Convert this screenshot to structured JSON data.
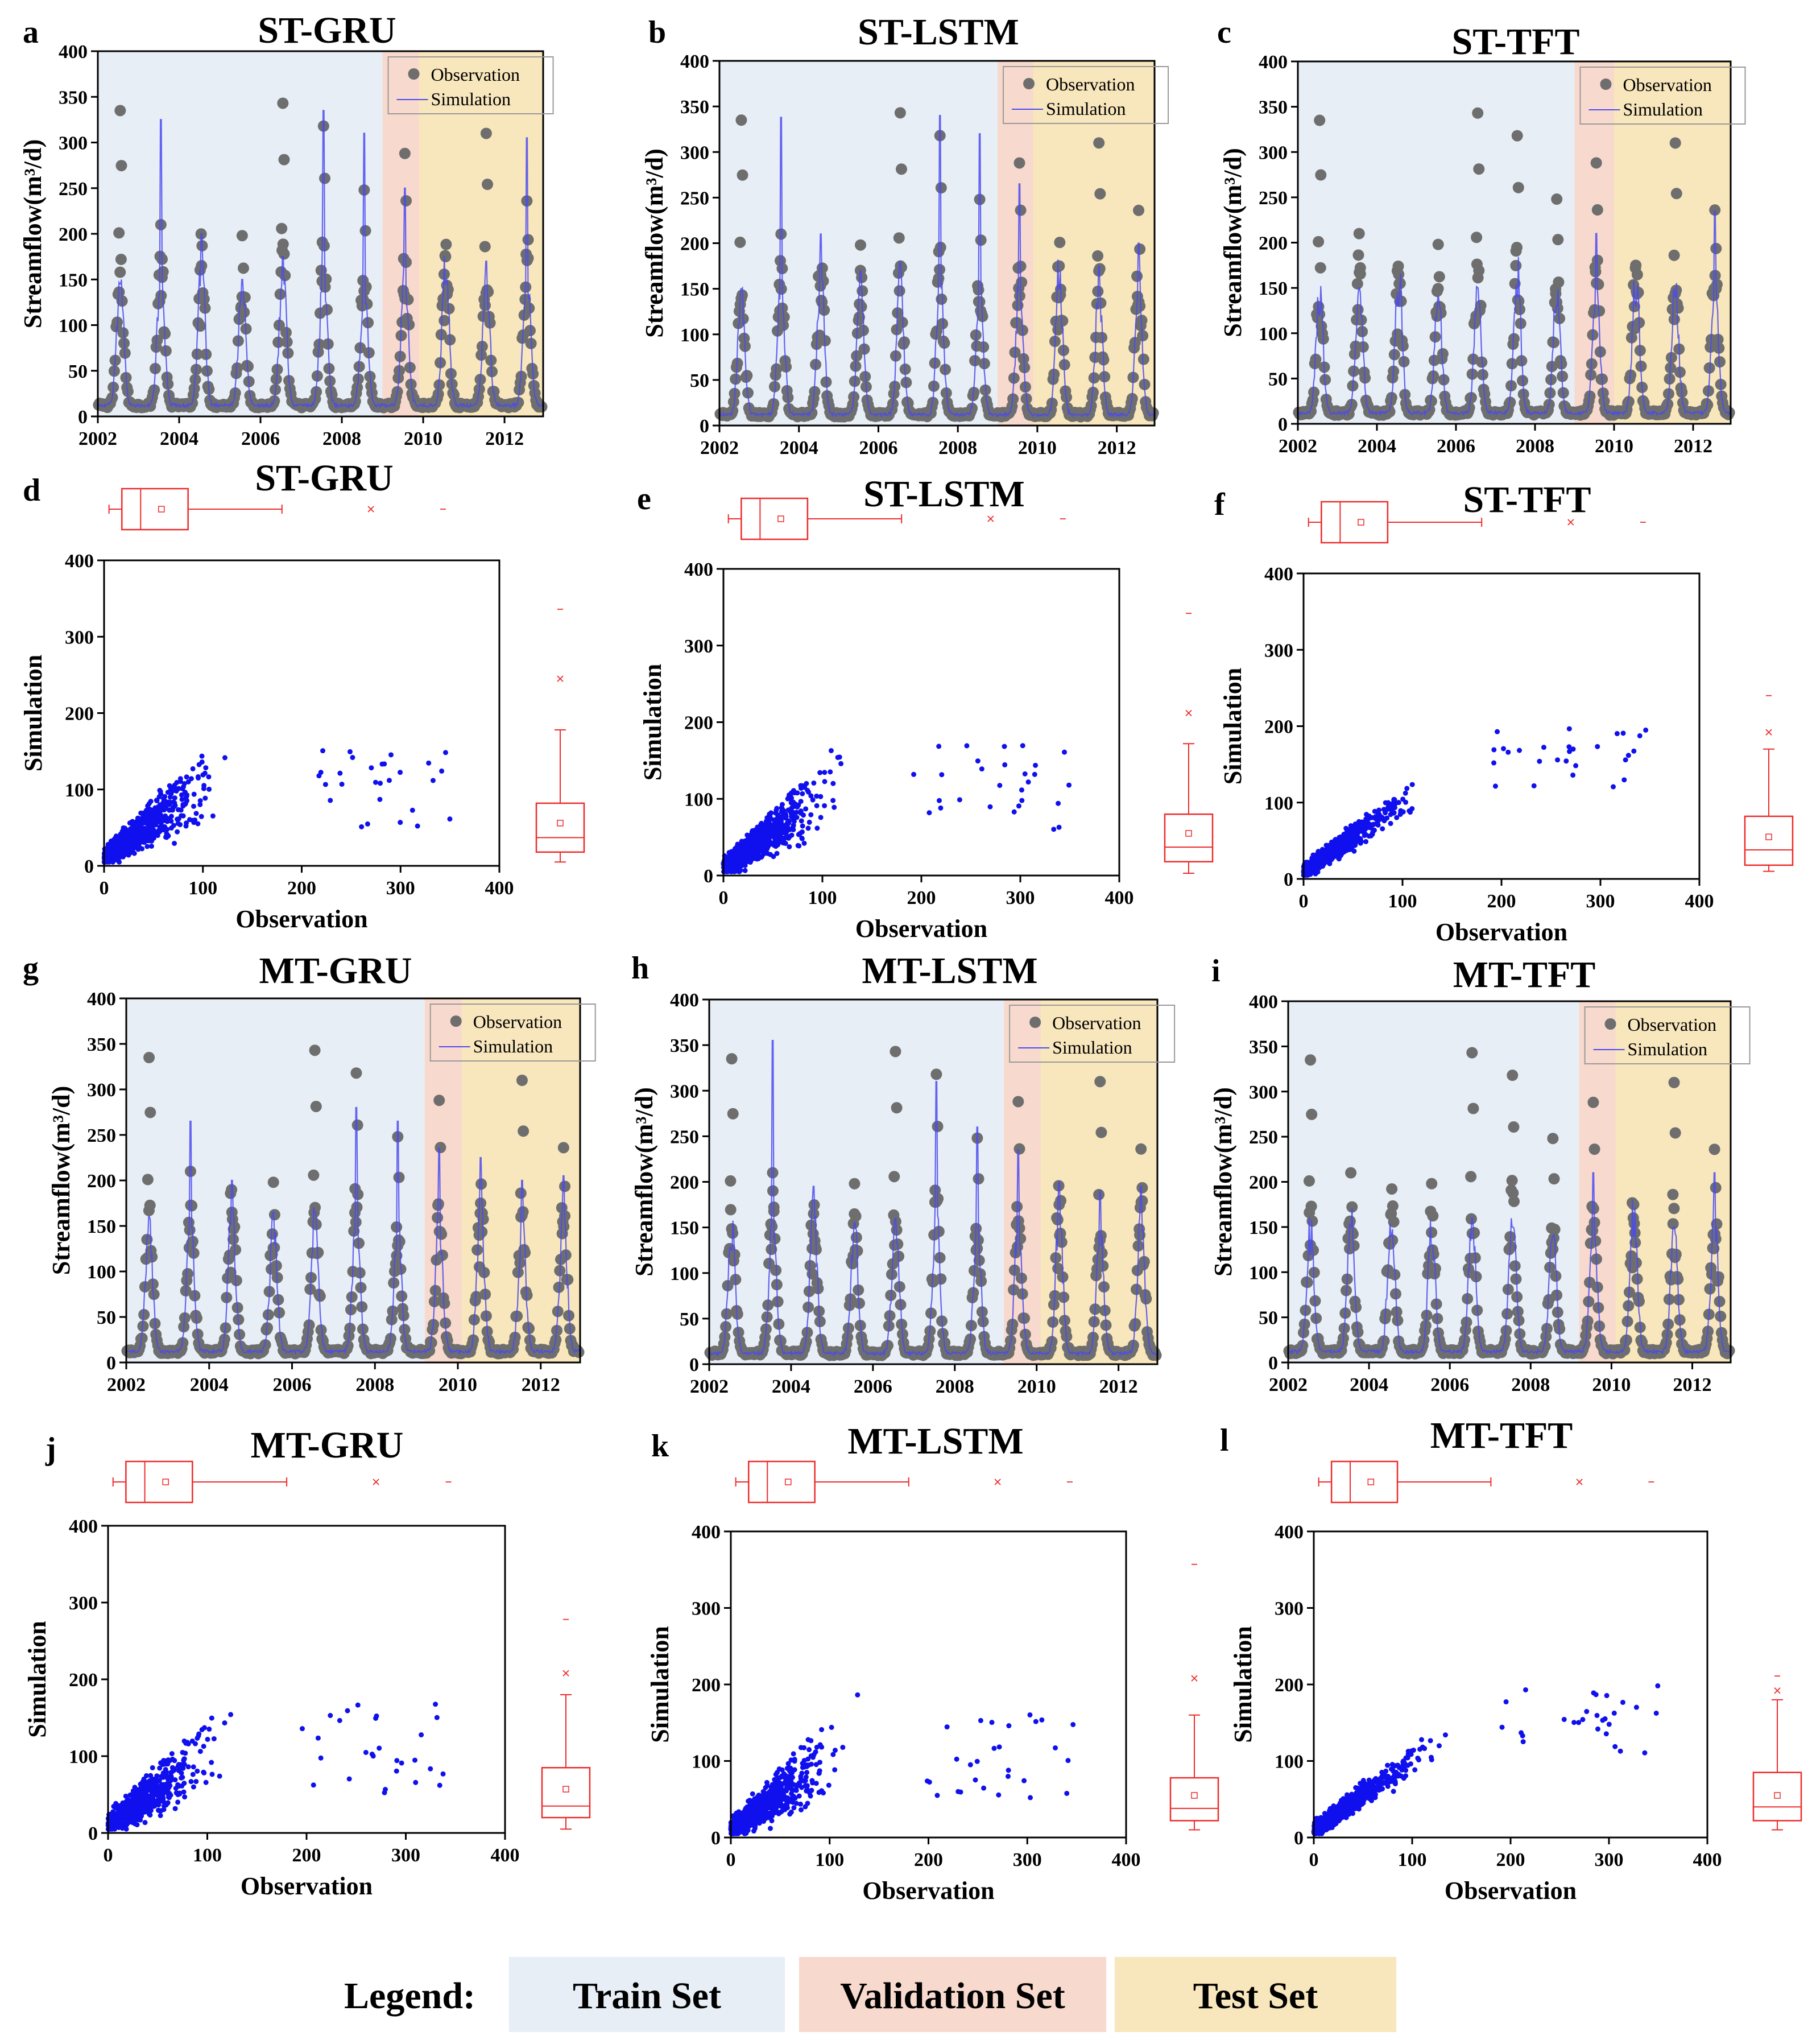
{
  "colors": {
    "train": "#e7eef6",
    "validation": "#f8d9cd",
    "test": "#f8e6bc",
    "observation": "#6e6e6e",
    "simulation": "#4a4af0",
    "scatter": "#1010ee",
    "boxplot": "#ee2b2b"
  },
  "bottom_legend": {
    "title": "Legend:",
    "items": [
      {
        "label": "Train Set",
        "color": "#e7eef6"
      },
      {
        "label": "Validation Set",
        "color": "#f8d9cd"
      },
      {
        "label": "Test Set",
        "color": "#f8e6bc"
      }
    ]
  },
  "chart_data": [
    {
      "id": "a",
      "type": "line",
      "title": "ST-GRU",
      "ylabel": "Streamflow(m³/d)",
      "xlabel": "",
      "legend": [
        "Observation",
        "Simulation"
      ],
      "x_ticks": [
        "2002",
        "2004",
        "2006",
        "2008",
        "2010",
        "2012"
      ],
      "y_ticks": [
        "0",
        "50",
        "100",
        "150",
        "200",
        "250",
        "300",
        "350",
        "400"
      ],
      "xlim": [
        2002,
        2012.95
      ],
      "ylim": [
        0,
        400
      ],
      "periods": {
        "train": [
          2002,
          2009.0
        ],
        "validation": [
          2009.0,
          2009.9
        ],
        "test": [
          2009.9,
          2012.95
        ]
      },
      "obs_peaks": [
        335,
        210,
        165,
        198,
        343,
        318,
        248,
        288,
        175,
        310,
        236
      ],
      "sim_peaks": [
        145,
        325,
        200,
        150,
        175,
        335,
        310,
        250,
        145,
        170,
        305
      ]
    },
    {
      "id": "b",
      "type": "line",
      "title": "ST-LSTM",
      "ylabel": "Streamflow(m³/d)",
      "xlabel": "",
      "legend": [
        "Observation",
        "Simulation"
      ],
      "x_ticks": [
        "2002",
        "2004",
        "2006",
        "2008",
        "2010",
        "2012"
      ],
      "y_ticks": [
        "0",
        "50",
        "100",
        "150",
        "200",
        "250",
        "300",
        "350",
        "400"
      ],
      "xlim": [
        2002,
        2012.95
      ],
      "ylim": [
        0,
        400
      ],
      "periods": {
        "train": [
          2002,
          2009.0
        ],
        "validation": [
          2009.0,
          2009.9
        ],
        "test": [
          2009.9,
          2012.95
        ]
      },
      "obs_peaks": [
        335,
        210,
        165,
        198,
        343,
        318,
        248,
        288,
        175,
        310,
        236
      ],
      "sim_peaks": [
        150,
        338,
        210,
        170,
        180,
        340,
        320,
        265,
        150,
        175,
        200
      ]
    },
    {
      "id": "c",
      "type": "line",
      "title": "ST-TFT",
      "ylabel": "Streamflow(m³/d)",
      "xlabel": "",
      "legend": [
        "Observation",
        "Simulation"
      ],
      "x_ticks": [
        "2002",
        "2004",
        "2006",
        "2008",
        "2010",
        "2012"
      ],
      "y_ticks": [
        "0",
        "50",
        "100",
        "150",
        "200",
        "250",
        "300",
        "350",
        "400"
      ],
      "xlim": [
        2002,
        2012.95
      ],
      "ylim": [
        0,
        400
      ],
      "periods": {
        "train": [
          2002,
          2009.0
        ],
        "validation": [
          2009.0,
          2010.0
        ],
        "test": [
          2010.0,
          2012.95
        ]
      },
      "obs_peaks": [
        335,
        210,
        165,
        198,
        343,
        318,
        248,
        288,
        175,
        310,
        236
      ],
      "sim_peaks": [
        120,
        150,
        130,
        140,
        150,
        140,
        130,
        210,
        130,
        140,
        235
      ]
    },
    {
      "id": "d",
      "type": "scatter",
      "title": "ST-GRU",
      "xlabel": "Observation",
      "ylabel": "Simulation",
      "x_ticks": [
        "0",
        "100",
        "200",
        "300",
        "400"
      ],
      "y_ticks": [
        "0",
        "100",
        "200",
        "300",
        "400"
      ],
      "xlim": [
        0,
        400
      ],
      "ylim": [
        0,
        400
      ],
      "boxplot_observation": {
        "whisker_low": 5,
        "q1": 18,
        "median": 37,
        "mean": 58,
        "q3": 85,
        "whisker_high": 180,
        "outliers": [
          270,
          343
        ]
      },
      "boxplot_simulation": {
        "whisker_low": 5,
        "q1": 18,
        "median": 37,
        "mean": 56,
        "q3": 82,
        "whisker_high": 178,
        "outliers": [
          245,
          336
        ]
      }
    },
    {
      "id": "e",
      "type": "scatter",
      "title": "ST-LSTM",
      "xlabel": "Observation",
      "ylabel": "Simulation",
      "x_ticks": [
        "0",
        "100",
        "200",
        "300",
        "400"
      ],
      "y_ticks": [
        "0",
        "100",
        "200",
        "300",
        "400"
      ],
      "xlim": [
        0,
        400
      ],
      "ylim": [
        0,
        400
      ],
      "boxplot_observation": {
        "whisker_low": 5,
        "q1": 18,
        "median": 37,
        "mean": 58,
        "q3": 85,
        "whisker_high": 180,
        "outliers": [
          270,
          343
        ]
      },
      "boxplot_simulation": {
        "whisker_low": 3,
        "q1": 18,
        "median": 37,
        "mean": 55,
        "q3": 80,
        "whisker_high": 172,
        "outliers": [
          212,
          342
        ]
      }
    },
    {
      "id": "f",
      "type": "scatter",
      "title": "ST-TFT",
      "xlabel": "Observation",
      "ylabel": "Simulation",
      "x_ticks": [
        "0",
        "100",
        "200",
        "300",
        "400"
      ],
      "y_ticks": [
        "0",
        "100",
        "200",
        "300",
        "400"
      ],
      "xlim": [
        0,
        400
      ],
      "ylim": [
        0,
        400
      ],
      "boxplot_observation": {
        "whisker_low": 5,
        "q1": 18,
        "median": 37,
        "mean": 58,
        "q3": 85,
        "whisker_high": 180,
        "outliers": [
          270,
          343
        ]
      },
      "boxplot_simulation": {
        "whisker_low": 10,
        "q1": 18,
        "median": 38,
        "mean": 55,
        "q3": 82,
        "whisker_high": 170,
        "outliers": [
          192,
          240
        ]
      }
    },
    {
      "id": "g",
      "type": "line",
      "title": "MT-GRU",
      "ylabel": "Streamflow(m³/d)",
      "xlabel": "",
      "legend": [
        "Observation",
        "Simulation"
      ],
      "x_ticks": [
        "2002",
        "2004",
        "2006",
        "2008",
        "2010",
        "2012"
      ],
      "y_ticks": [
        "0",
        "50",
        "100",
        "150",
        "200",
        "250",
        "300",
        "350",
        "400"
      ],
      "xlim": [
        2002,
        2012.95
      ],
      "ylim": [
        0,
        400
      ],
      "periods": {
        "train": [
          2002,
          2009.2
        ],
        "validation": [
          2009.2,
          2010.1
        ],
        "test": [
          2010.1,
          2012.95
        ]
      },
      "obs_peaks": [
        335,
        210,
        165,
        198,
        343,
        318,
        248,
        288,
        175,
        310,
        236
      ],
      "sim_peaks": [
        160,
        265,
        200,
        165,
        165,
        280,
        265,
        235,
        225,
        200,
        205
      ]
    },
    {
      "id": "h",
      "type": "line",
      "title": "MT-LSTM",
      "ylabel": "Streamflow(m³/d)",
      "xlabel": "",
      "legend": [
        "Observation",
        "Simulation"
      ],
      "x_ticks": [
        "2002",
        "2004",
        "2006",
        "2008",
        "2010",
        "2012"
      ],
      "y_ticks": [
        "0",
        "50",
        "100",
        "150",
        "200",
        "250",
        "300",
        "350",
        "400"
      ],
      "xlim": [
        2002,
        2012.95
      ],
      "ylim": [
        0,
        400
      ],
      "periods": {
        "train": [
          2002,
          2009.2
        ],
        "validation": [
          2009.2,
          2010.1
        ],
        "test": [
          2010.1,
          2012.95
        ]
      },
      "obs_peaks": [
        335,
        210,
        165,
        198,
        343,
        318,
        248,
        288,
        175,
        310,
        236
      ],
      "sim_peaks": [
        125,
        355,
        195,
        155,
        160,
        310,
        260,
        235,
        200,
        190,
        195
      ]
    },
    {
      "id": "i",
      "type": "line",
      "title": "MT-TFT",
      "ylabel": "Streamflow(m³/d)",
      "xlabel": "",
      "legend": [
        "Observation",
        "Simulation"
      ],
      "x_ticks": [
        "2002",
        "2004",
        "2006",
        "2008",
        "2010",
        "2012"
      ],
      "y_ticks": [
        "0",
        "50",
        "100",
        "150",
        "200",
        "250",
        "300",
        "350",
        "400"
      ],
      "xlim": [
        2002,
        2012.95
      ],
      "ylim": [
        0,
        400
      ],
      "periods": {
        "train": [
          2002,
          2009.2
        ],
        "validation": [
          2009.2,
          2010.1
        ],
        "test": [
          2010.1,
          2012.95
        ]
      },
      "obs_peaks": [
        335,
        210,
        165,
        198,
        343,
        318,
        248,
        288,
        175,
        310,
        236
      ],
      "sim_peaks": [
        120,
        150,
        140,
        130,
        160,
        150,
        140,
        210,
        140,
        150,
        210
      ]
    },
    {
      "id": "j",
      "type": "scatter",
      "title": "MT-GRU",
      "xlabel": "Observation",
      "ylabel": "Simulation",
      "x_ticks": [
        "0",
        "100",
        "200",
        "300",
        "400"
      ],
      "y_ticks": [
        "0",
        "100",
        "200",
        "300",
        "400"
      ],
      "xlim": [
        0,
        400
      ],
      "ylim": [
        0,
        400
      ],
      "boxplot_observation": {
        "whisker_low": 5,
        "q1": 18,
        "median": 37,
        "mean": 58,
        "q3": 85,
        "whisker_high": 180,
        "outliers": [
          270,
          343
        ]
      },
      "boxplot_simulation": {
        "whisker_low": 5,
        "q1": 20,
        "median": 35,
        "mean": 57,
        "q3": 85,
        "whisker_high": 180,
        "outliers": [
          208,
          278
        ]
      }
    },
    {
      "id": "k",
      "type": "scatter",
      "title": "MT-LSTM",
      "xlabel": "Observation",
      "ylabel": "Simulation",
      "x_ticks": [
        "0",
        "100",
        "200",
        "300",
        "400"
      ],
      "y_ticks": [
        "0",
        "100",
        "200",
        "300",
        "400"
      ],
      "xlim": [
        0,
        400
      ],
      "ylim": [
        0,
        400
      ],
      "boxplot_observation": {
        "whisker_low": 5,
        "q1": 18,
        "median": 37,
        "mean": 58,
        "q3": 85,
        "whisker_high": 180,
        "outliers": [
          270,
          343
        ]
      },
      "boxplot_simulation": {
        "whisker_low": 10,
        "q1": 22,
        "median": 38,
        "mean": 55,
        "q3": 78,
        "whisker_high": 160,
        "outliers": [
          208,
          357
        ]
      }
    },
    {
      "id": "l",
      "type": "scatter",
      "title": "MT-TFT",
      "xlabel": "Observation",
      "ylabel": "Simulation",
      "x_ticks": [
        "0",
        "100",
        "200",
        "300",
        "400"
      ],
      "y_ticks": [
        "0",
        "100",
        "200",
        "300",
        "400"
      ],
      "xlim": [
        0,
        400
      ],
      "ylim": [
        0,
        400
      ],
      "boxplot_observation": {
        "whisker_low": 5,
        "q1": 18,
        "median": 37,
        "mean": 58,
        "q3": 85,
        "whisker_high": 180,
        "outliers": [
          270,
          343
        ]
      },
      "boxplot_simulation": {
        "whisker_low": 10,
        "q1": 22,
        "median": 40,
        "mean": 55,
        "q3": 85,
        "whisker_high": 180,
        "outliers": [
          192,
          211
        ]
      }
    }
  ]
}
